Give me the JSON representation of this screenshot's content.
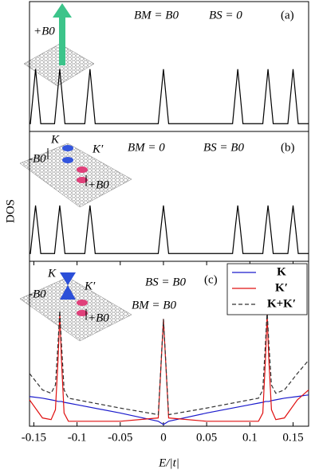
{
  "chart_data": [
    {
      "type": "line",
      "annotations": [
        "BM = B0",
        "BS = 0",
        "(a)",
        "+B0"
      ],
      "xlim": [
        -0.155,
        0.168
      ],
      "ylim": [
        0,
        1
      ],
      "color": "#000000",
      "x": [
        -0.155,
        -0.154,
        -0.151,
        -0.148,
        -0.145,
        -0.142,
        -0.126,
        -0.123,
        -0.12,
        -0.117,
        -0.114,
        -0.091,
        -0.088,
        -0.085,
        -0.082,
        -0.079,
        -0.006,
        -0.003,
        0,
        0.003,
        0.006,
        0.08,
        0.083,
        0.086,
        0.089,
        0.092,
        0.115,
        0.118,
        0.121,
        0.124,
        0.127,
        0.144,
        0.147,
        0.15,
        0.153,
        0.156,
        0.168
      ],
      "values": [
        0.06,
        0.06,
        0.27,
        0.48,
        0.27,
        0.06,
        0.06,
        0.27,
        0.48,
        0.27,
        0.06,
        0.06,
        0.27,
        0.48,
        0.27,
        0.06,
        0.06,
        0.27,
        0.48,
        0.27,
        0.06,
        0.06,
        0.27,
        0.48,
        0.27,
        0.06,
        0.06,
        0.27,
        0.48,
        0.27,
        0.06,
        0.06,
        0.27,
        0.48,
        0.27,
        0.06,
        0.06
      ]
    },
    {
      "type": "line",
      "ylabel": "DOS",
      "annotations": [
        "BM = 0",
        "BS = B0",
        "(b)",
        "K",
        "K′",
        "-B0",
        "+B0"
      ],
      "xlim": [
        -0.155,
        0.168
      ],
      "ylim": [
        0,
        1
      ],
      "color": "#000000",
      "x": [
        -0.155,
        -0.154,
        -0.151,
        -0.148,
        -0.145,
        -0.142,
        -0.126,
        -0.123,
        -0.12,
        -0.117,
        -0.114,
        -0.091,
        -0.088,
        -0.085,
        -0.082,
        -0.079,
        -0.006,
        -0.003,
        0,
        0.003,
        0.006,
        0.08,
        0.083,
        0.086,
        0.089,
        0.092,
        0.115,
        0.118,
        0.121,
        0.124,
        0.127,
        0.144,
        0.147,
        0.15,
        0.153,
        0.156,
        0.168
      ],
      "values": [
        0.06,
        0.06,
        0.25,
        0.43,
        0.25,
        0.06,
        0.06,
        0.25,
        0.43,
        0.25,
        0.06,
        0.06,
        0.25,
        0.43,
        0.25,
        0.06,
        0.06,
        0.25,
        0.43,
        0.25,
        0.06,
        0.06,
        0.25,
        0.43,
        0.25,
        0.06,
        0.06,
        0.25,
        0.43,
        0.25,
        0.06,
        0.06,
        0.25,
        0.43,
        0.25,
        0.06,
        0.06
      ]
    },
    {
      "type": "line",
      "xlabel": "E/|t|",
      "annotations": [
        "BS = B0",
        "BM = B0",
        "(c)",
        "K",
        "K′",
        "-B0",
        "+B0"
      ],
      "xlim": [
        -0.155,
        0.168
      ],
      "ylim": [
        0,
        1
      ],
      "xticks": [
        -0.15,
        -0.1,
        -0.05,
        0,
        0.05,
        0.1,
        0.15
      ],
      "legend": "upper right",
      "x": [
        -0.155,
        -0.14,
        -0.13,
        -0.125,
        -0.122,
        -0.12,
        -0.118,
        -0.115,
        -0.11,
        -0.1,
        -0.05,
        -0.006,
        -0.003,
        0,
        0.003,
        0.006,
        0.05,
        0.1,
        0.11,
        0.115,
        0.118,
        0.12,
        0.122,
        0.125,
        0.13,
        0.14,
        0.155,
        0.168
      ],
      "series": [
        {
          "name": "K",
          "color": "#1a1acc",
          "values": [
            0.18,
            0.17,
            0.16,
            0.155,
            0.15,
            0.15,
            0.15,
            0.145,
            0.14,
            0.13,
            0.08,
            0.03,
            0.02,
            0.01,
            0.02,
            0.03,
            0.08,
            0.13,
            0.14,
            0.145,
            0.15,
            0.15,
            0.15,
            0.155,
            0.16,
            0.17,
            0.18,
            0.19
          ]
        },
        {
          "name": "K′",
          "color": "#e01010",
          "values": [
            0.16,
            0.05,
            0.04,
            0.1,
            0.4,
            0.68,
            0.4,
            0.08,
            0.03,
            0.03,
            0.03,
            0.05,
            0.35,
            0.65,
            0.35,
            0.05,
            0.03,
            0.03,
            0.03,
            0.08,
            0.4,
            0.68,
            0.4,
            0.1,
            0.04,
            0.05,
            0.16,
            0.22
          ]
        },
        {
          "name": "K+K′",
          "color": "#333333",
          "dash": true,
          "values": [
            0.32,
            0.22,
            0.2,
            0.25,
            0.5,
            0.7,
            0.5,
            0.22,
            0.17,
            0.16,
            0.11,
            0.07,
            0.36,
            0.65,
            0.36,
            0.07,
            0.11,
            0.16,
            0.17,
            0.22,
            0.5,
            0.7,
            0.5,
            0.25,
            0.2,
            0.22,
            0.32,
            0.4
          ]
        }
      ]
    }
  ]
}
